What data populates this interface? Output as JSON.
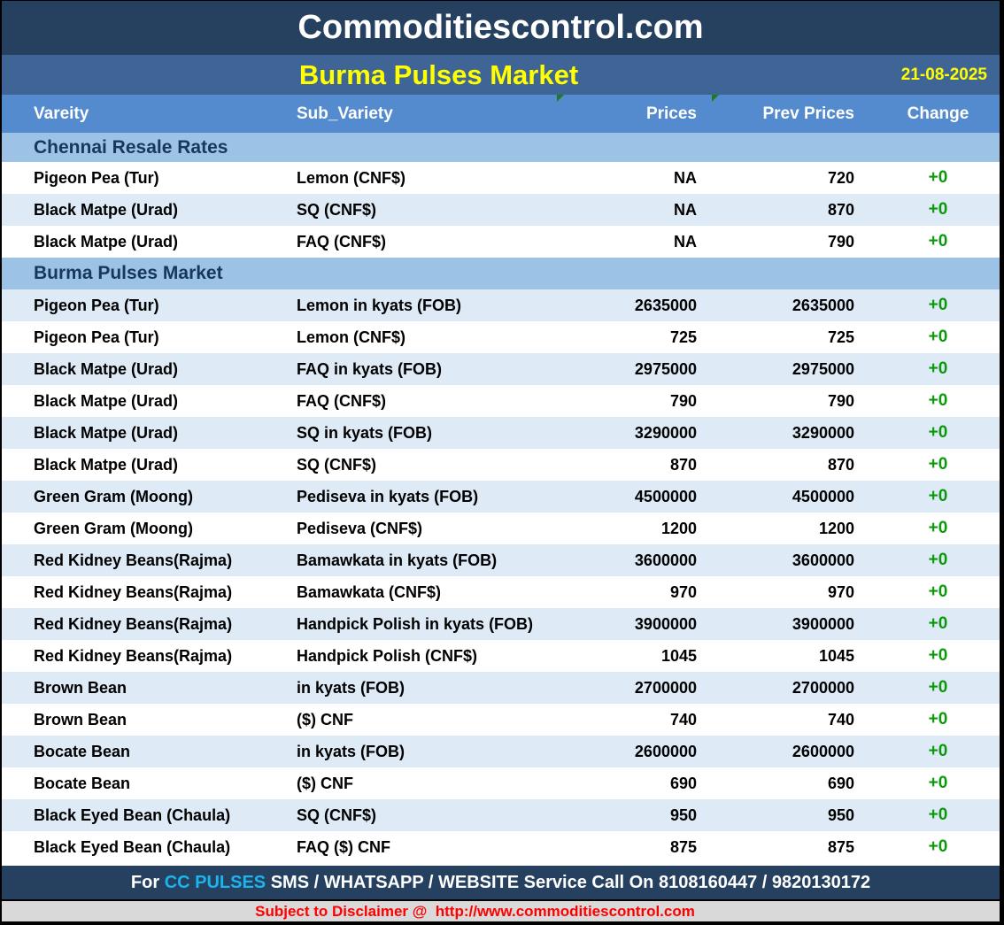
{
  "header": {
    "site_title": "Commoditiescontrol.com",
    "report_title": "Burma Pulses Market",
    "date": "21-08-2025"
  },
  "table": {
    "columns": {
      "variety": "Vareity",
      "sub_variety": "Sub_Variety",
      "prices": "Prices",
      "prev_prices": "Prev Prices",
      "change": "Change"
    },
    "sections": [
      {
        "title": "Chennai Resale Rates",
        "rows": [
          {
            "variety": "Pigeon Pea (Tur)",
            "sub_variety": "Lemon (CNF$)",
            "price": "NA",
            "prev_price": "720",
            "change": "+0"
          },
          {
            "variety": "Black Matpe (Urad)",
            "sub_variety": "SQ (CNF$)",
            "price": "NA",
            "prev_price": "870",
            "change": "+0"
          },
          {
            "variety": "Black Matpe (Urad)",
            "sub_variety": "FAQ (CNF$)",
            "price": "NA",
            "prev_price": "790",
            "change": "+0"
          }
        ]
      },
      {
        "title": "Burma Pulses Market",
        "rows": [
          {
            "variety": "Pigeon Pea (Tur)",
            "sub_variety": "Lemon in kyats (FOB)",
            "price": "2635000",
            "prev_price": "2635000",
            "change": "+0"
          },
          {
            "variety": "Pigeon Pea (Tur)",
            "sub_variety": "Lemon (CNF$)",
            "price": "725",
            "prev_price": "725",
            "change": "+0"
          },
          {
            "variety": "Black Matpe (Urad)",
            "sub_variety": "FAQ in kyats (FOB)",
            "price": "2975000",
            "prev_price": "2975000",
            "change": "+0"
          },
          {
            "variety": "Black Matpe (Urad)",
            "sub_variety": "FAQ (CNF$)",
            "price": "790",
            "prev_price": "790",
            "change": "+0"
          },
          {
            "variety": "Black Matpe (Urad)",
            "sub_variety": "SQ in kyats (FOB)",
            "price": "3290000",
            "prev_price": "3290000",
            "change": "+0"
          },
          {
            "variety": "Black Matpe (Urad)",
            "sub_variety": "SQ (CNF$)",
            "price": "870",
            "prev_price": "870",
            "change": "+0"
          },
          {
            "variety": "Green Gram (Moong)",
            "sub_variety": "Pediseva in kyats (FOB)",
            "price": "4500000",
            "prev_price": "4500000",
            "change": "+0"
          },
          {
            "variety": "Green Gram (Moong)",
            "sub_variety": "Pediseva (CNF$)",
            "price": "1200",
            "prev_price": "1200",
            "change": "+0"
          },
          {
            "variety": "Red Kidney Beans(Rajma)",
            "sub_variety": "Bamawkata in kyats (FOB)",
            "price": "3600000",
            "prev_price": "3600000",
            "change": "+0"
          },
          {
            "variety": "Red Kidney Beans(Rajma)",
            "sub_variety": "Bamawkata (CNF$)",
            "price": "970",
            "prev_price": "970",
            "change": "+0"
          },
          {
            "variety": "Red Kidney Beans(Rajma)",
            "sub_variety": "Handpick Polish in kyats (FOB)",
            "price": "3900000",
            "prev_price": "3900000",
            "change": "+0"
          },
          {
            "variety": "Red Kidney Beans(Rajma)",
            "sub_variety": "Handpick Polish (CNF$)",
            "price": "1045",
            "prev_price": "1045",
            "change": "+0"
          },
          {
            "variety": "Brown Bean",
            "sub_variety": "in kyats (FOB)",
            "price": "2700000",
            "prev_price": "2700000",
            "change": "+0"
          },
          {
            "variety": "Brown Bean",
            "sub_variety": "($) CNF",
            "price": "740",
            "prev_price": "740",
            "change": "+0"
          },
          {
            "variety": "Bocate Bean",
            "sub_variety": "in kyats (FOB)",
            "price": "2600000",
            "prev_price": "2600000",
            "change": "+0"
          },
          {
            "variety": "Bocate Bean",
            "sub_variety": "($) CNF",
            "price": "690",
            "prev_price": "690",
            "change": "+0"
          },
          {
            "variety": "Black Eyed Bean (Chaula)",
            "sub_variety": "SQ (CNF$)",
            "price": "950",
            "prev_price": "950",
            "change": "+0"
          },
          {
            "variety": "Black Eyed Bean (Chaula)",
            "sub_variety": "FAQ ($) CNF",
            "price": "875",
            "prev_price": "875",
            "change": "+0"
          }
        ]
      }
    ]
  },
  "footer": {
    "service_prefix": "For ",
    "service_brand": "CC PULSES",
    "service_suffix": " SMS / WHATSAPP / WEBSITE Service Call On 8108160447 / 9820130172",
    "disclaimer": "Subject to Disclaimer @  http://www.commoditiescontrol.com"
  },
  "colors": {
    "navy_bar": "#264160",
    "title_bar": "#3E6596",
    "table_header": "#548BCE",
    "section_band": "#9CC2E5",
    "alt_row": "#DEEAF6",
    "section_text": "#17375D",
    "change_green": "#0A990A",
    "comment_marker_green": "#217A21",
    "brand_cyan": "#1CB4EC",
    "highlight_yellow": "#FFFF00",
    "disclaimer_bg": "#D9D9D9",
    "disclaimer_red": "#FF0000"
  }
}
